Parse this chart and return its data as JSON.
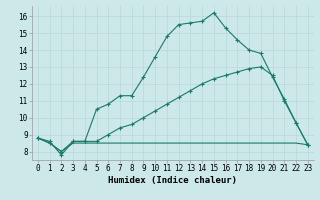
{
  "xlabel": "Humidex (Indice chaleur)",
  "bg_color": "#cce8e8",
  "grid_color": "#b8d8d8",
  "line_color": "#1a7a6a",
  "xlim": [
    -0.5,
    23.5
  ],
  "ylim": [
    7.5,
    16.6
  ],
  "xticks": [
    0,
    1,
    2,
    3,
    4,
    5,
    6,
    7,
    8,
    9,
    10,
    11,
    12,
    13,
    14,
    15,
    16,
    17,
    18,
    19,
    20,
    21,
    22,
    23
  ],
  "yticks": [
    8,
    9,
    10,
    11,
    12,
    13,
    14,
    15,
    16
  ],
  "line1_x": [
    0,
    1,
    2,
    3,
    4,
    5,
    6,
    7,
    8,
    9,
    10,
    11,
    12,
    13,
    14,
    15,
    16,
    17,
    18,
    19,
    20,
    21,
    22,
    23
  ],
  "line1_y": [
    8.8,
    8.6,
    7.8,
    8.6,
    8.6,
    10.5,
    10.8,
    11.3,
    11.3,
    12.4,
    13.6,
    14.8,
    15.5,
    15.6,
    15.7,
    16.2,
    15.3,
    14.6,
    14.0,
    13.8,
    12.4,
    11.1,
    9.7,
    8.4
  ],
  "line2_x": [
    0,
    1,
    2,
    3,
    4,
    5,
    6,
    7,
    8,
    9,
    10,
    11,
    12,
    13,
    14,
    15,
    16,
    17,
    18,
    19,
    20,
    21,
    22,
    23
  ],
  "line2_y": [
    8.8,
    8.5,
    8.0,
    8.6,
    8.6,
    8.6,
    9.0,
    9.4,
    9.6,
    10.0,
    10.4,
    10.8,
    11.2,
    11.6,
    12.0,
    12.3,
    12.5,
    12.7,
    12.9,
    13.0,
    12.5,
    11.0,
    9.7,
    8.4
  ],
  "line3_x": [
    0,
    1,
    2,
    3,
    4,
    5,
    6,
    7,
    8,
    9,
    10,
    11,
    12,
    13,
    14,
    15,
    16,
    17,
    18,
    19,
    20,
    21,
    22,
    23
  ],
  "line3_y": [
    8.8,
    8.5,
    8.0,
    8.5,
    8.5,
    8.5,
    8.5,
    8.5,
    8.5,
    8.5,
    8.5,
    8.5,
    8.5,
    8.5,
    8.5,
    8.5,
    8.5,
    8.5,
    8.5,
    8.5,
    8.5,
    8.5,
    8.5,
    8.4
  ],
  "xlabel_fontsize": 6.5,
  "tick_fontsize": 5.5
}
